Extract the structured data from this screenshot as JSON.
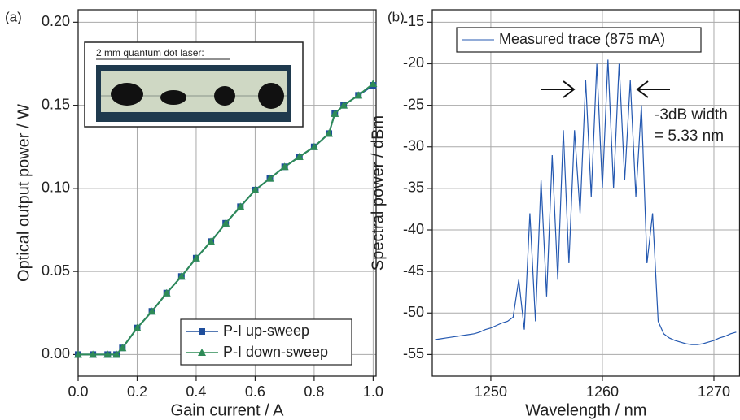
{
  "chart_data": [
    {
      "type": "line",
      "label": "(a)",
      "x_label": "Gain current / A",
      "y_label": "Optical output power / W",
      "inset_caption": "2 mm quantum dot laser:",
      "x": [
        0,
        0.05,
        0.1,
        0.13,
        0.15,
        0.2,
        0.25,
        0.3,
        0.35,
        0.4,
        0.45,
        0.5,
        0.55,
        0.6,
        0.65,
        0.7,
        0.75,
        0.8,
        0.85,
        0.87,
        0.9,
        0.95,
        1.0
      ],
      "series": [
        {
          "name": "P-I up-sweep",
          "color": "#1f4e9c",
          "marker": "square",
          "values": [
            0,
            0,
            0,
            0,
            0.004,
            0.016,
            0.026,
            0.037,
            0.047,
            0.058,
            0.068,
            0.079,
            0.089,
            0.099,
            0.106,
            0.113,
            0.119,
            0.125,
            0.133,
            0.145,
            0.15,
            0.156,
            0.162
          ]
        },
        {
          "name": "P-I down-sweep",
          "color": "#2e8b57",
          "marker": "triangle",
          "values": [
            0,
            0,
            0,
            0,
            0.004,
            0.016,
            0.026,
            0.037,
            0.047,
            0.058,
            0.068,
            0.079,
            0.089,
            0.099,
            0.106,
            0.113,
            0.119,
            0.125,
            0.133,
            0.145,
            0.15,
            0.156,
            0.163
          ]
        }
      ],
      "xlim": [
        0,
        1.01
      ],
      "ylim": [
        -0.013,
        0.2075
      ],
      "xticks": [
        {
          "value": 0,
          "label": "0.0"
        },
        0.2,
        0.4,
        0.6,
        0.8,
        {
          "value": 1,
          "label": "1.0"
        }
      ],
      "yticks": [
        {
          "value": 0,
          "label": "0.00"
        },
        0.05,
        {
          "value": 0.1,
          "label": "0.10"
        },
        0.15,
        {
          "value": 0.2,
          "label": "0.20"
        }
      ],
      "grid": true,
      "legend": "lower right"
    },
    {
      "type": "line",
      "label": "(b)",
      "x_label": "Wavelength / nm",
      "y_label": "Spectral power / dBm",
      "annotations": [
        "-3dB width",
        "= 5.33 nm"
      ],
      "x": [
        1245,
        1245.5,
        1246,
        1246.5,
        1247,
        1247.5,
        1248,
        1248.5,
        1249,
        1249.5,
        1250,
        1250.5,
        1251,
        1251.5,
        1252,
        1252.5,
        1253,
        1253.5,
        1254,
        1254.5,
        1255,
        1255.5,
        1256,
        1256.5,
        1257,
        1257.5,
        1258,
        1258.5,
        1259,
        1259.5,
        1260,
        1260.5,
        1261,
        1261.5,
        1262,
        1262.5,
        1263,
        1263.5,
        1264,
        1264.5,
        1265,
        1265.5,
        1266,
        1266.5,
        1267,
        1267.5,
        1268,
        1268.5,
        1269,
        1269.5,
        1270,
        1270.5,
        1271,
        1271.5,
        1272
      ],
      "series": [
        {
          "name": "Measured trace (875 mA)",
          "color": "#2458b0",
          "values": [
            -53.2,
            -53.1,
            -53.0,
            -52.9,
            -52.8,
            -52.7,
            -52.6,
            -52.5,
            -52.3,
            -52.0,
            -51.8,
            -51.5,
            -51.2,
            -51.0,
            -50.5,
            -46,
            -52,
            -38,
            -51,
            -34,
            -48,
            -31,
            -46,
            -28,
            -44,
            -28,
            -38,
            -22,
            -36,
            -20,
            -35,
            -19.5,
            -35,
            -20,
            -34,
            -22,
            -36,
            -25,
            -44,
            -38,
            -51,
            -52.5,
            -53,
            -53.3,
            -53.5,
            -53.7,
            -53.8,
            -53.8,
            -53.7,
            -53.5,
            -53.3,
            -53.0,
            -52.8,
            -52.5,
            -52.3
          ]
        }
      ],
      "xlim": [
        1244.75,
        1272.3
      ],
      "ylim": [
        -57.6,
        -13.5
      ],
      "xticks": [
        1250,
        1260,
        1270
      ],
      "yticks": [
        -15,
        -20,
        -25,
        -30,
        -35,
        -40,
        -45,
        -50,
        -55
      ],
      "grid": true,
      "legend": "upper left"
    }
  ]
}
